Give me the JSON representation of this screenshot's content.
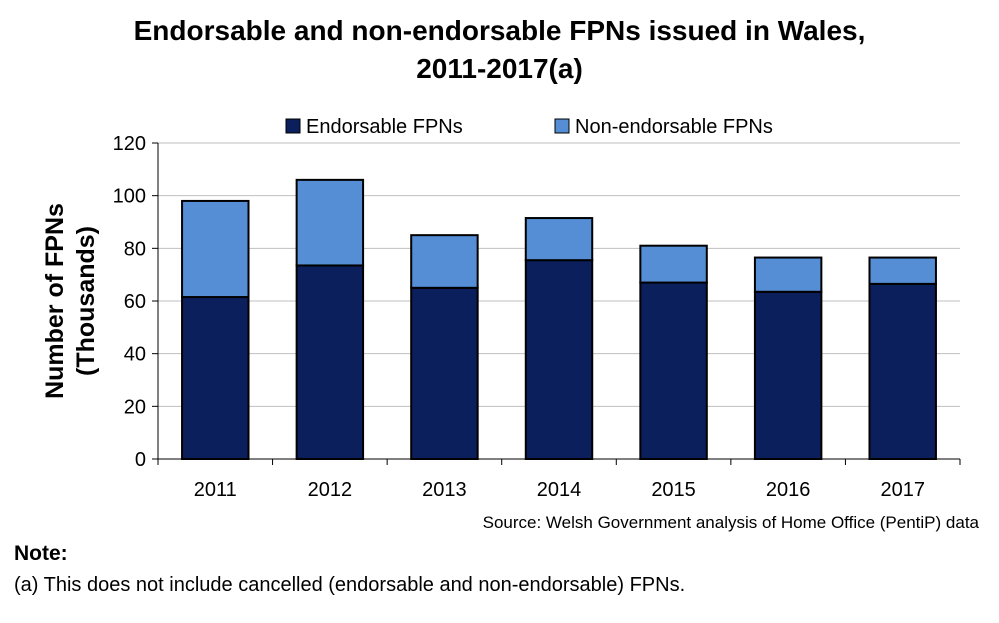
{
  "title_line1": "Endorsable and non-endorsable FPNs issued in Wales,",
  "title_line2": "2011-2017(a)",
  "source": "Source: Welsh Government analysis of Home Office (PentiP) data",
  "note_heading": "Note:",
  "note_text": "(a) This does not include cancelled (endorsable and non-endorsable) FPNs.",
  "chart_data": {
    "type": "bar",
    "stacked": true,
    "title": "Endorsable and non-endorsable FPNs issued in Wales, 2011-2017(a)",
    "xlabel": "",
    "ylabel_lines": [
      "Number of FPNs",
      "(Thousands)"
    ],
    "categories": [
      "2011",
      "2012",
      "2013",
      "2014",
      "2015",
      "2016",
      "2017"
    ],
    "series": [
      {
        "name": "Endorsable FPNs",
        "color": "#0a1f5c",
        "values": [
          61.5,
          73.5,
          65,
          75.5,
          67,
          63.5,
          66.5
        ]
      },
      {
        "name": "Non-endorsable FPNs",
        "color": "#558ed5",
        "values": [
          36.5,
          32.5,
          20,
          16,
          14,
          13,
          10
        ]
      }
    ],
    "ylim": [
      0,
      120
    ],
    "yticks": [
      0,
      20,
      40,
      60,
      80,
      100,
      120
    ],
    "grid": true,
    "legend_position": "top"
  }
}
